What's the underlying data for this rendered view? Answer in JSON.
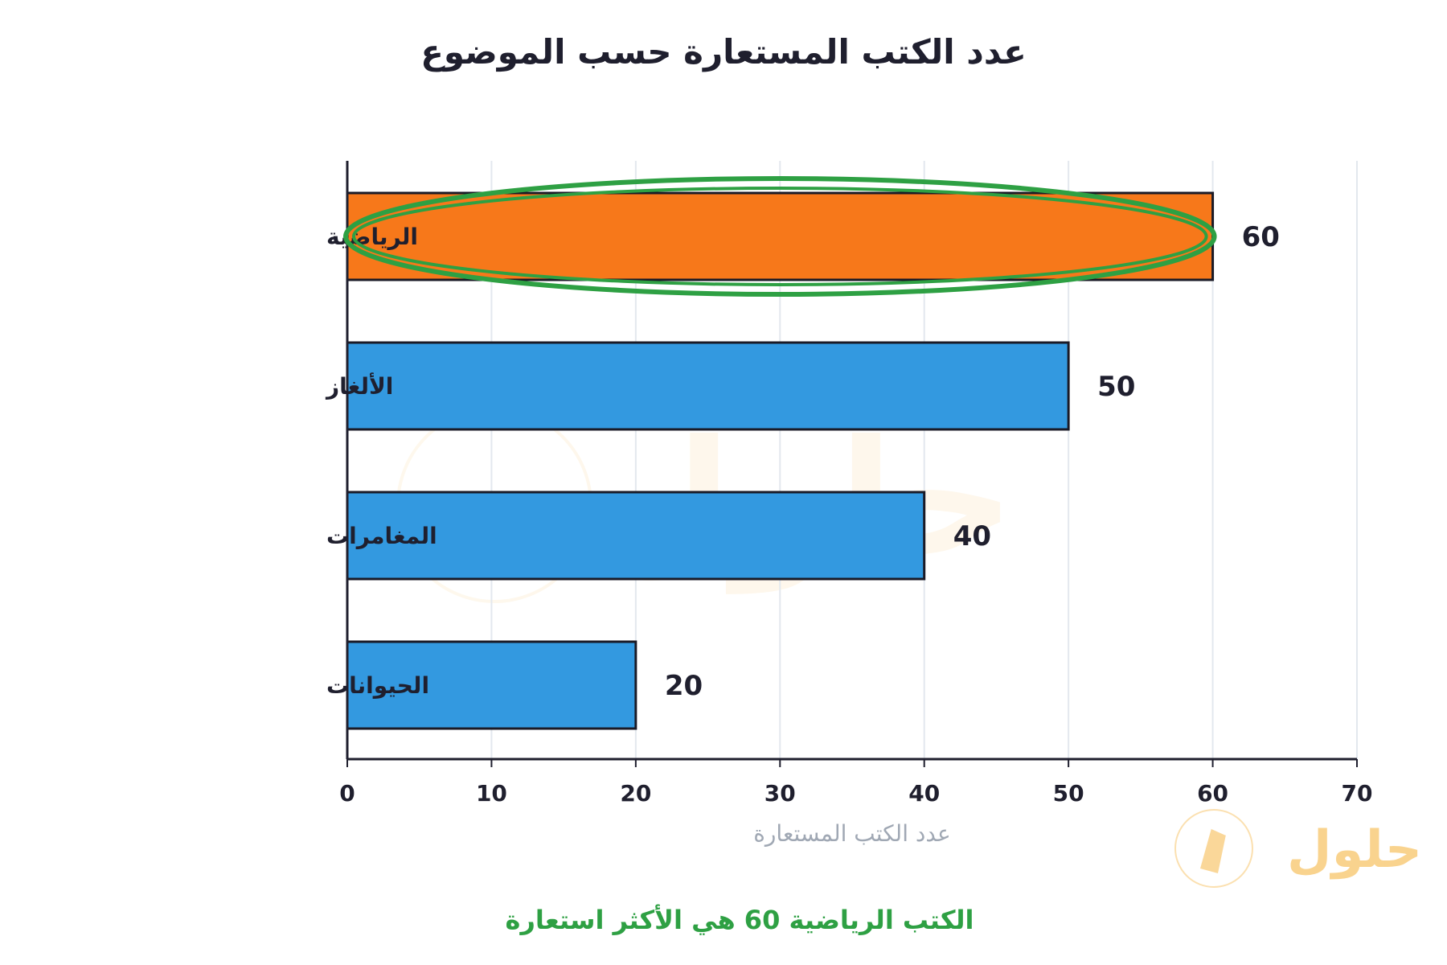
{
  "chart_data": {
    "type": "bar",
    "orientation": "horizontal",
    "title": "عدد الكتب المستعارة حسب الموضوع",
    "xlabel": "عدد الكتب المستعارة",
    "ylabel": "",
    "categories": [
      "الرياضية",
      "الألغاز",
      "المغامرات",
      "الحيوانات"
    ],
    "values": [
      60,
      50,
      40,
      20
    ],
    "xlim": [
      0,
      70
    ],
    "xticks": [
      0,
      10,
      20,
      30,
      40,
      50,
      60,
      70
    ],
    "grid": true,
    "highlighted_category": "الرياضية",
    "annotation": "الكتب الرياضية 60 هي الأكثر استعارة"
  },
  "colors": {
    "bar": "#3399e0",
    "highlight_bar": "#f7781a",
    "highlight_ring": "#2ea043",
    "grid": "#e3e8ee",
    "watermark": "#f4a81f"
  },
  "watermark": {
    "text": "حلول",
    "icon": "book-icon"
  }
}
